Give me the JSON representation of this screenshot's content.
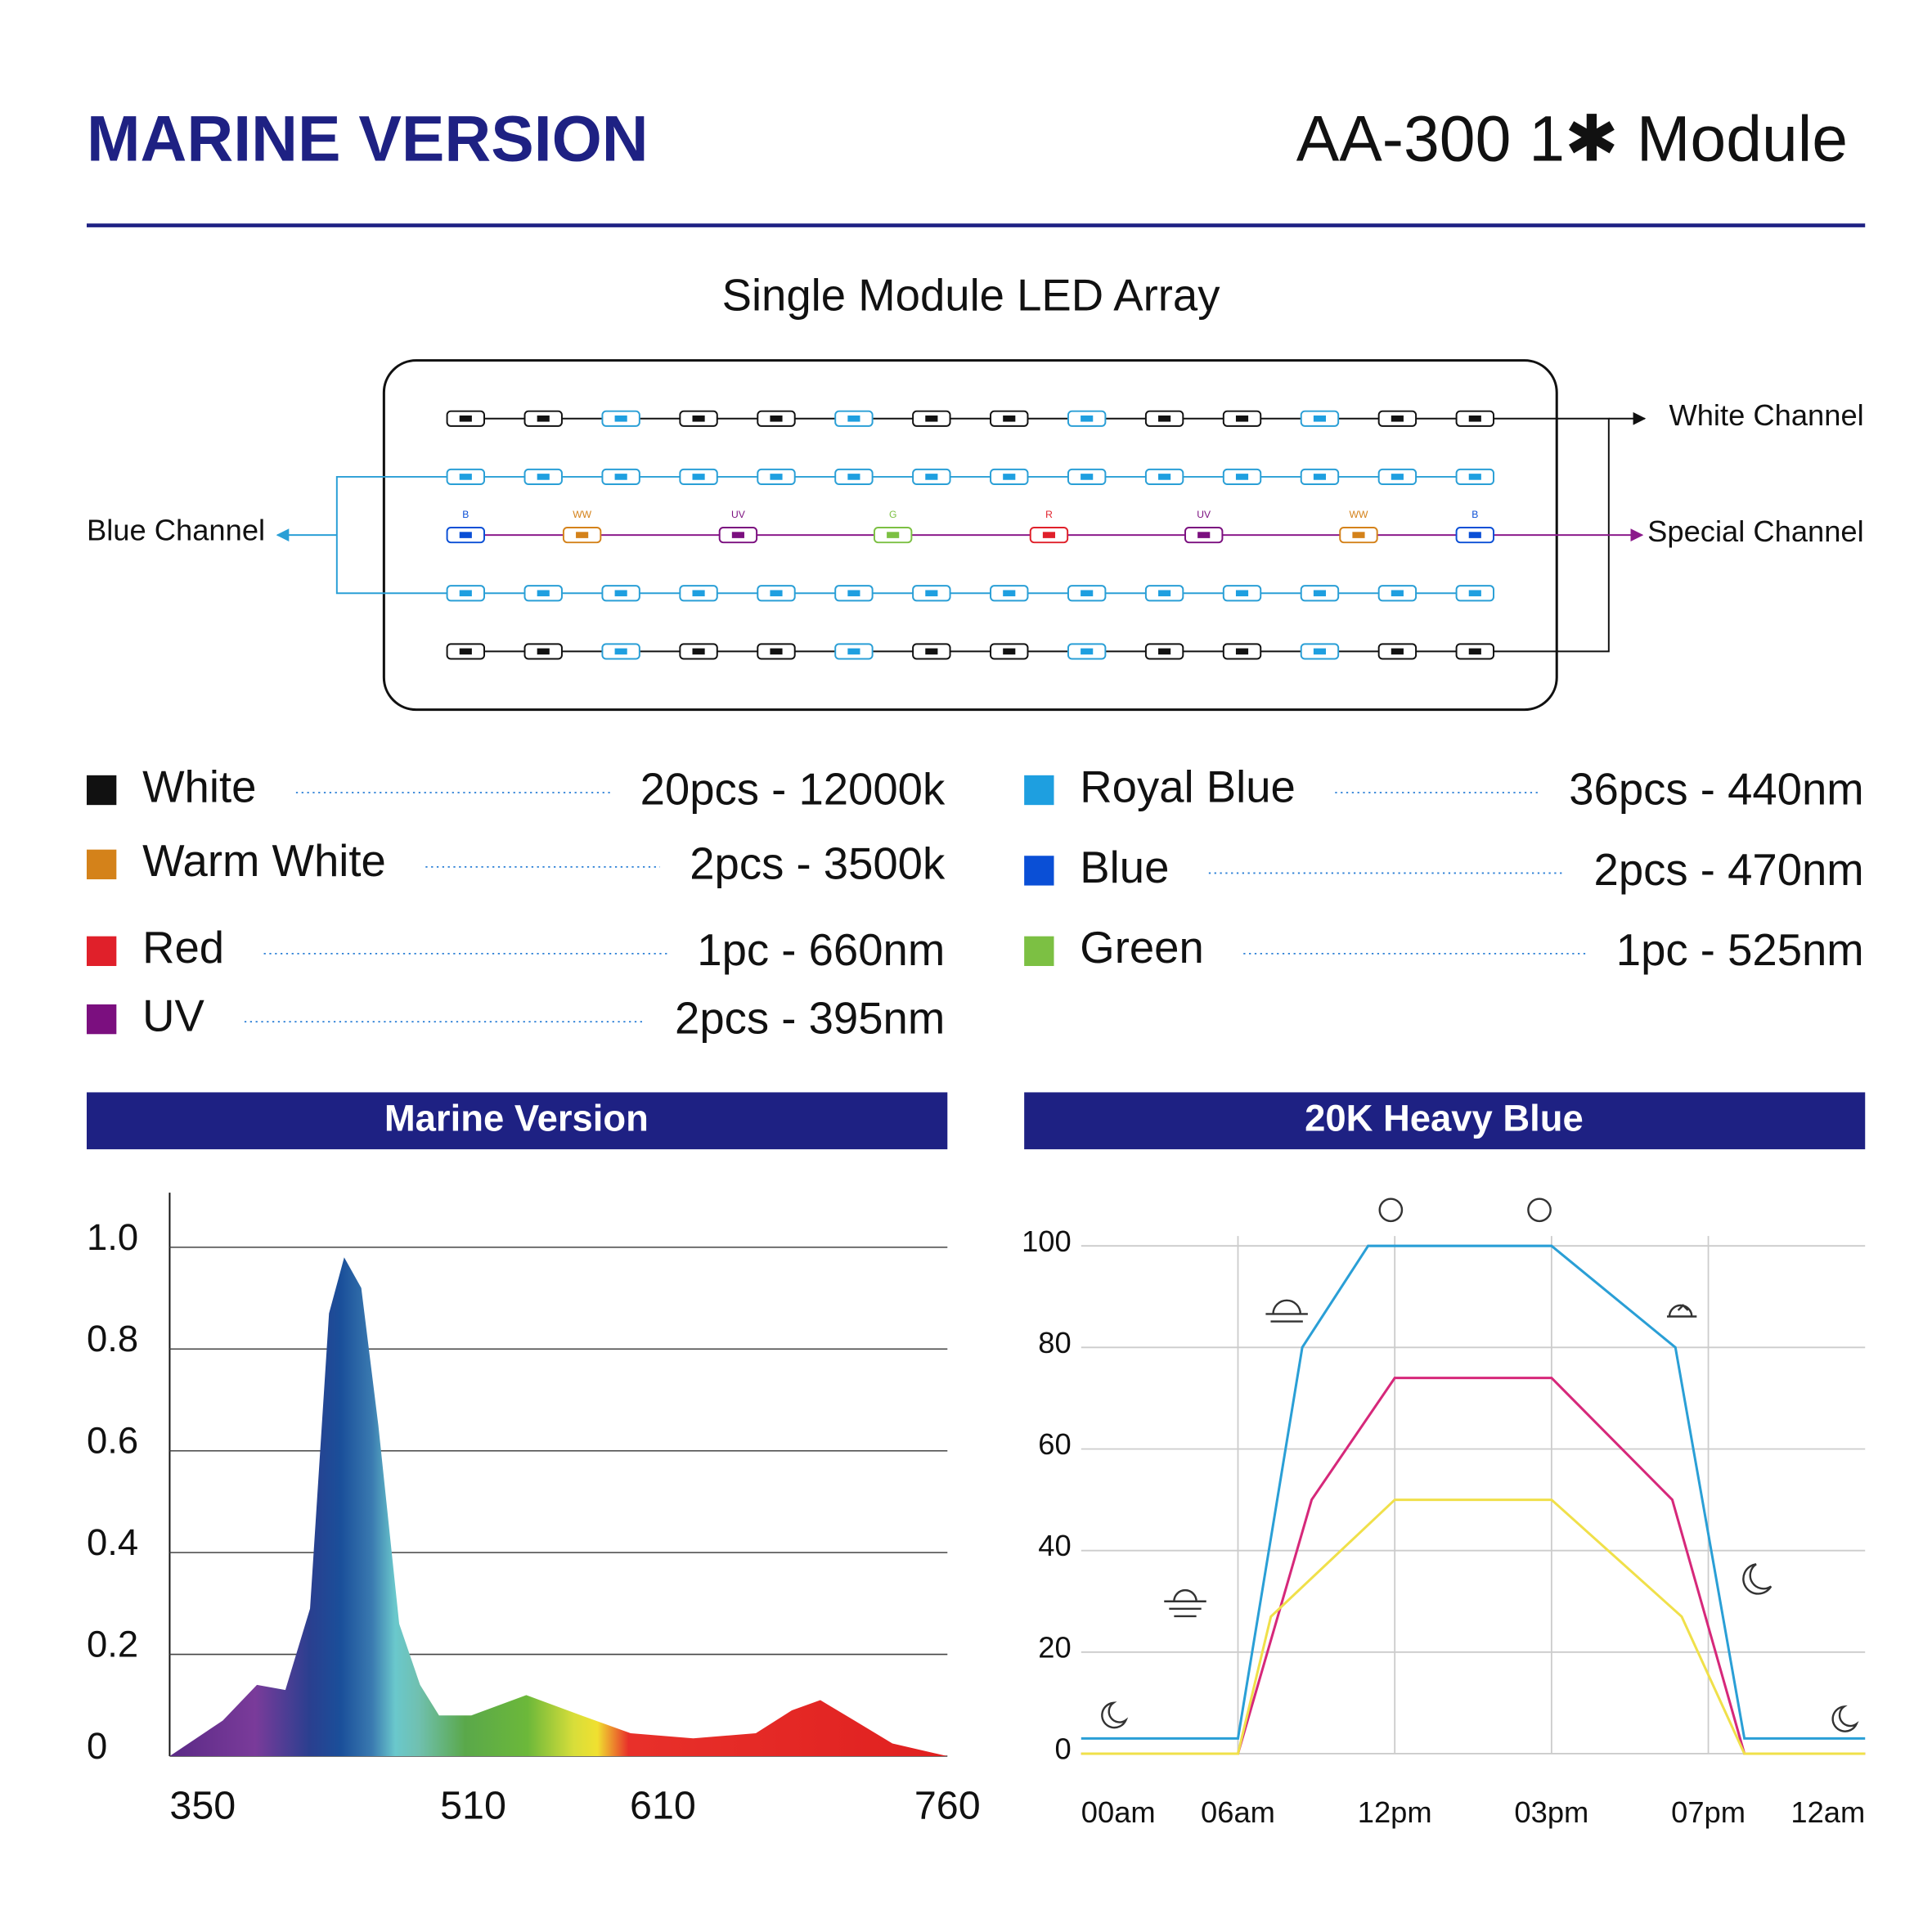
{
  "header": {
    "title": "MARINE VERSION",
    "model": "AA-300  1✱ Module"
  },
  "led_array": {
    "title": "Single Module LED Array",
    "white_channel": "White Channel",
    "special_channel": "Special Channel",
    "blue_channel": "Blue Channel",
    "special_leds": [
      "B",
      "WW",
      "UV",
      "G",
      "R",
      "UV",
      "WW",
      "B"
    ]
  },
  "legend": [
    {
      "name": "White",
      "spec": "20pcs - 12000k",
      "color": "#111111"
    },
    {
      "name": "Warm White",
      "spec": "2pcs - 3500k",
      "color": "#d4821a"
    },
    {
      "name": "Red",
      "spec": "1pc - 660nm",
      "color": "#e0202a"
    },
    {
      "name": "UV",
      "spec": "2pcs - 395nm",
      "color": "#7b0f7f"
    },
    {
      "name": "Royal Blue",
      "spec": "36pcs - 440nm",
      "color": "#1e9fe0"
    },
    {
      "name": "Blue",
      "spec": "2pcs - 470nm",
      "color": "#0a4fd6"
    },
    {
      "name": "Green",
      "spec": "1pc - 525nm",
      "color": "#7cc043"
    }
  ],
  "chart_data": [
    {
      "type": "area",
      "title": "Marine Version",
      "x": [
        350,
        378,
        396,
        411,
        424,
        434,
        442,
        451,
        460,
        471,
        482,
        492,
        509,
        538,
        567,
        593,
        626,
        659,
        678,
        693,
        711,
        731,
        760
      ],
      "values": [
        0,
        0.07,
        0.14,
        0.13,
        0.29,
        0.87,
        0.98,
        0.92,
        0.65,
        0.26,
        0.14,
        0.08,
        0.08,
        0.12,
        0.08,
        0.045,
        0.035,
        0.045,
        0.09,
        0.11,
        0.07,
        0.025,
        0
      ],
      "xlim": [
        350,
        760
      ],
      "xticks": [
        350,
        510,
        610,
        760
      ],
      "ylim": [
        0,
        1.1
      ],
      "yticks": [
        0,
        0.2,
        0.4,
        0.6,
        0.8,
        {
          "value": 1,
          "label": "1.0"
        }
      ],
      "grid": true
    },
    {
      "type": "line",
      "title": "20K Heavy Blue",
      "series": [
        {
          "color": "#2a9fd6",
          "x": [
            0,
            1,
            1.41,
            1.83,
            3,
            3.79,
            4.23,
            5
          ],
          "values": [
            3,
            3,
            80,
            100,
            100,
            80,
            3,
            3
          ]
        },
        {
          "color": "#d6287a",
          "x": [
            0,
            1,
            1.47,
            2,
            3,
            3.77,
            4.23,
            5
          ],
          "values": [
            0,
            0,
            50,
            74,
            74,
            50,
            0,
            0
          ]
        },
        {
          "color": "#f0e04a",
          "x": [
            0,
            1,
            1.21,
            2,
            3,
            3.83,
            4.23,
            5
          ],
          "values": [
            0,
            0,
            27,
            50,
            50,
            27,
            0,
            0
          ]
        }
      ],
      "xlim": [
        0,
        5
      ],
      "xticks": [
        {
          "value": 0,
          "label": "00am"
        },
        {
          "value": 1,
          "label": "06am"
        },
        {
          "value": 2,
          "label": "12pm"
        },
        {
          "value": 3,
          "label": "03pm"
        },
        {
          "value": 4,
          "label": "07pm"
        },
        {
          "value": 5,
          "label": "12am"
        }
      ],
      "ylim": [
        0,
        100
      ],
      "yticks": [
        0,
        20,
        40,
        60,
        80,
        100
      ],
      "grid": true
    }
  ]
}
